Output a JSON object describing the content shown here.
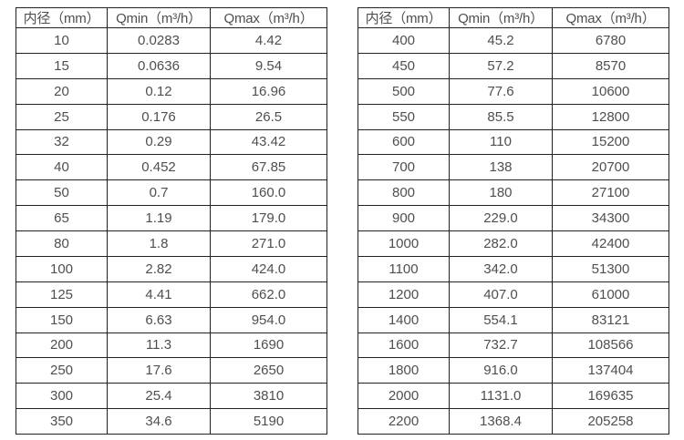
{
  "page": {
    "background_color": "#ffffff",
    "text_color": "#4f4f4f",
    "border_color": "#222222"
  },
  "tables": [
    {
      "name": "flow-table-left",
      "headers": [
        "内径（mm）",
        "Qmin（m³/h）",
        "Qmax（m³/h）"
      ],
      "rows": [
        [
          "10",
          "0.0283",
          "4.42"
        ],
        [
          "15",
          "0.0636",
          "9.54"
        ],
        [
          "20",
          "0.12",
          "16.96"
        ],
        [
          "25",
          "0.176",
          "26.5"
        ],
        [
          "32",
          "0.29",
          "43.42"
        ],
        [
          "40",
          "0.452",
          "67.85"
        ],
        [
          "50",
          "0.7",
          "160.0"
        ],
        [
          "65",
          "1.19",
          "179.0"
        ],
        [
          "80",
          "1.8",
          "271.0"
        ],
        [
          "100",
          "2.82",
          "424.0"
        ],
        [
          "125",
          "4.41",
          "662.0"
        ],
        [
          "150",
          "6.63",
          "954.0"
        ],
        [
          "200",
          "11.3",
          "1690"
        ],
        [
          "250",
          "17.6",
          "2650"
        ],
        [
          "300",
          "25.4",
          "3810"
        ],
        [
          "350",
          "34.6",
          "5190"
        ]
      ]
    },
    {
      "name": "flow-table-right",
      "headers": [
        "内径（mm）",
        "Qmin（m³/h）",
        "Qmax（m³/h）"
      ],
      "rows": [
        [
          "400",
          "45.2",
          "6780"
        ],
        [
          "450",
          "57.2",
          "8570"
        ],
        [
          "500",
          "77.6",
          "10600"
        ],
        [
          "550",
          "85.5",
          "12800"
        ],
        [
          "600",
          "110",
          "15200"
        ],
        [
          "700",
          "138",
          "20700"
        ],
        [
          "800",
          "180",
          "27100"
        ],
        [
          "900",
          "229.0",
          "34300"
        ],
        [
          "1000",
          "282.0",
          "42400"
        ],
        [
          "1100",
          "342.0",
          "51300"
        ],
        [
          "1200",
          "407.0",
          "61000"
        ],
        [
          "1400",
          "554.1",
          "83121"
        ],
        [
          "1600",
          "732.7",
          "108566"
        ],
        [
          "1800",
          "916.0",
          "137404"
        ],
        [
          "2000",
          "1131.0",
          "169635"
        ],
        [
          "2200",
          "1368.4",
          "205258"
        ]
      ]
    }
  ]
}
